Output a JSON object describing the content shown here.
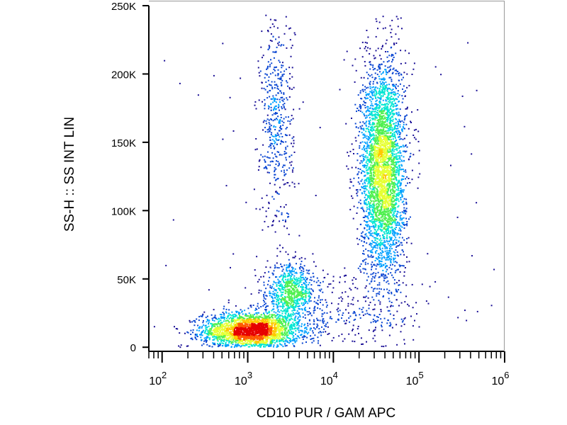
{
  "chart_data": {
    "type": "scatter",
    "title": "",
    "xlabel": "CD10 PUR / GAM APC",
    "ylabel": "SS-H :: SS INT LIN",
    "x_scale": "log",
    "xlim": [
      70,
      1000000
    ],
    "ylim": [
      -3000,
      250000
    ],
    "grid": false,
    "legend": "none",
    "x_ticks": [
      {
        "value": 100,
        "base": "10",
        "exp": "2"
      },
      {
        "value": 1000,
        "base": "10",
        "exp": "3"
      },
      {
        "value": 10000,
        "base": "10",
        "exp": "4"
      },
      {
        "value": 100000,
        "base": "10",
        "exp": "5"
      },
      {
        "value": 1000000,
        "base": "10",
        "exp": "6"
      }
    ],
    "y_ticks": [
      {
        "value": 0,
        "label": "0"
      },
      {
        "value": 50000,
        "label": "50K"
      },
      {
        "value": 100000,
        "label": "100K"
      },
      {
        "value": 150000,
        "label": "150K"
      },
      {
        "value": 200000,
        "label": "200K"
      },
      {
        "value": 250000,
        "label": "250K"
      }
    ],
    "density_colormap": [
      "#1a0f96",
      "#0a46d2",
      "#00a0ff",
      "#00e6d2",
      "#50f050",
      "#e6ff32",
      "#ffc800",
      "#ff5a00",
      "#e60000"
    ],
    "populations": [
      {
        "x_center": 1100,
        "x_log_sd": 0.28,
        "y_center": 12000,
        "y_sd": 6500,
        "events": 2600
      },
      {
        "x_center": 3200,
        "x_log_sd": 0.14,
        "y_center": 40000,
        "y_sd": 10000,
        "events": 700
      },
      {
        "x_center": 2200,
        "x_log_sd": 0.1,
        "y_center": 165000,
        "y_sd": 40000,
        "events": 500
      },
      {
        "x_center": 38000,
        "x_log_sd": 0.13,
        "y_center": 130000,
        "y_sd": 40000,
        "events": 3600
      },
      {
        "x_center": 10000,
        "x_log_sd": 0.55,
        "y_center": 25000,
        "y_sd": 15000,
        "events": 400
      }
    ]
  }
}
